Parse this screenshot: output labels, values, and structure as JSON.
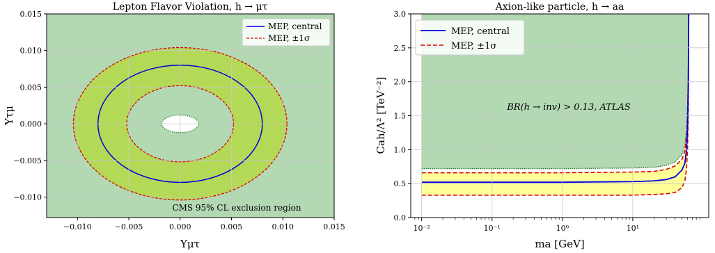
{
  "colors": {
    "excluded_green": "#b3d9b3",
    "band_lime": "#b4d957",
    "band_yellow": "#ffff99",
    "central_blue": "#0000dd",
    "sigma_red": "#dd0000",
    "boundary_green": "#1f7a1f",
    "grid": "#c8c8c8"
  },
  "chart_data": [
    {
      "type": "contour",
      "title": "Lepton Flavor Violation, h → μτ",
      "xlabel": "Υμτ",
      "ylabel": "Υτμ",
      "xlim": [
        -0.013,
        0.015
      ],
      "ylim": [
        -0.0128,
        0.015
      ],
      "xticks": [
        -0.01,
        -0.005,
        0.0,
        0.005,
        0.01,
        0.015
      ],
      "xtick_labels": [
        "−0.010",
        "−0.005",
        "0.000",
        "0.005",
        "0.010",
        "0.015"
      ],
      "yticks": [
        -0.01,
        -0.005,
        0.0,
        0.005,
        0.01,
        0.015
      ],
      "ytick_labels": [
        "−0.010",
        "−0.005",
        "0.000",
        "0.005",
        "0.010",
        "0.015"
      ],
      "grid": true,
      "legend_position": "top-right",
      "legend": [
        "MEP, central",
        "MEP, ±1σ"
      ],
      "annotation": "CMS 95% CL exclusion region",
      "circles": {
        "central_radius": 0.008,
        "sigma_outer_radius": 0.0104,
        "sigma_inner_radius": 0.0052,
        "allowed_region_rx": 0.0018,
        "allowed_region_ry": 0.0012
      }
    },
    {
      "type": "line",
      "title": "Axion-like particle, h → aa",
      "xlabel": "ma [GeV]",
      "ylabel": "Cah/Λ² [TeV⁻²]",
      "xscale": "log",
      "xlim": [
        0.007,
        120
      ],
      "ylim": [
        0.0,
        3.0
      ],
      "xticks": [
        0.01,
        0.1,
        1,
        10
      ],
      "xtick_labels": [
        "10⁻²",
        "10⁻¹",
        "10⁰",
        "10¹"
      ],
      "yticks": [
        0.0,
        0.5,
        1.0,
        1.5,
        2.0,
        2.5,
        3.0
      ],
      "ytick_labels": [
        "0.0",
        "0.5",
        "1.0",
        "1.5",
        "2.0",
        "2.5",
        "3.0"
      ],
      "grid": true,
      "legend_position": "top-left",
      "legend": [
        "MEP, central",
        "MEP, ±1σ"
      ],
      "annotation": "BR(h → inv) > 0.13, ATLAS",
      "series": [
        {
          "name": "MEP, central",
          "x": [
            0.01,
            1,
            10,
            20,
            30,
            40,
            50,
            55,
            58,
            60,
            61.5,
            62.3
          ],
          "values": [
            0.52,
            0.52,
            0.53,
            0.54,
            0.56,
            0.6,
            0.7,
            0.8,
            1.0,
            1.3,
            1.9,
            3.0
          ]
        },
        {
          "name": "MEP, +1σ",
          "x": [
            0.01,
            1,
            10,
            20,
            30,
            40,
            50,
            55,
            58,
            60,
            61.5,
            62.3
          ],
          "values": [
            0.66,
            0.66,
            0.67,
            0.68,
            0.71,
            0.76,
            0.86,
            0.98,
            1.2,
            1.5,
            2.1,
            3.0
          ]
        },
        {
          "name": "MEP, −1σ",
          "x": [
            0.01,
            1,
            10,
            20,
            30,
            40,
            50,
            55,
            58,
            60,
            61.5,
            62.3
          ],
          "values": [
            0.33,
            0.33,
            0.33,
            0.34,
            0.35,
            0.37,
            0.44,
            0.54,
            0.72,
            1.0,
            1.6,
            3.0
          ]
        }
      ],
      "exclusion_boundary": {
        "x": [
          0.01,
          1,
          10,
          20,
          30,
          40,
          50,
          55,
          58,
          60,
          61.5,
          62.3
        ],
        "values": [
          0.72,
          0.72,
          0.73,
          0.74,
          0.77,
          0.82,
          0.93,
          1.06,
          1.28,
          1.6,
          2.2,
          3.0
        ]
      }
    }
  ]
}
